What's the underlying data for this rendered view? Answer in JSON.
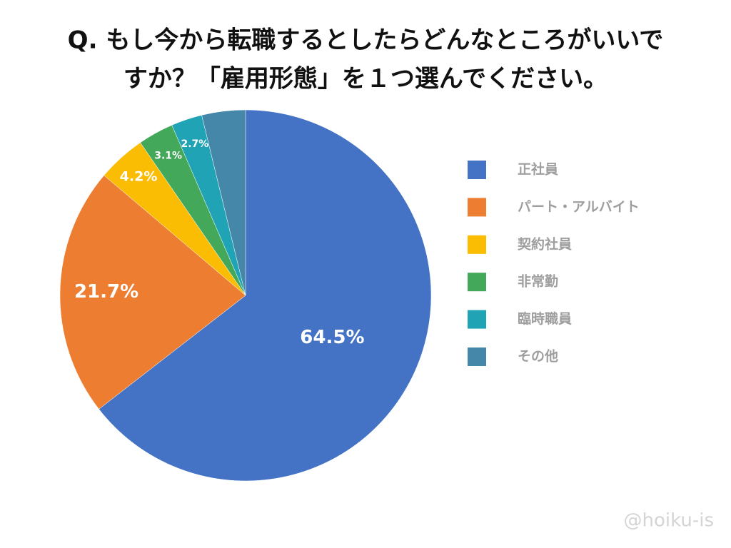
{
  "chart_data": {
    "type": "pie",
    "title": [
      "Q. もし今から転職するとしたらどんなところがいいで",
      "すか？「雇用形態」を１つ選んでください。"
    ],
    "categories": [
      "正社員",
      "パート・アルバイト",
      "契約社員",
      "非常勤",
      "臨時職員",
      "その他"
    ],
    "values": [
      64.5,
      21.7,
      4.2,
      3.1,
      2.7,
      3.8
    ],
    "value_labels": [
      "64.5%",
      "21.7%",
      "4.2%",
      "3.1%",
      "2.7%",
      null
    ],
    "colors": [
      "#4472c4",
      "#ed7d31",
      "#fbbc04",
      "#43a85a",
      "#1fa3b5",
      "#4587a8"
    ],
    "legend": "right",
    "watermark": "@hoiku-is"
  }
}
